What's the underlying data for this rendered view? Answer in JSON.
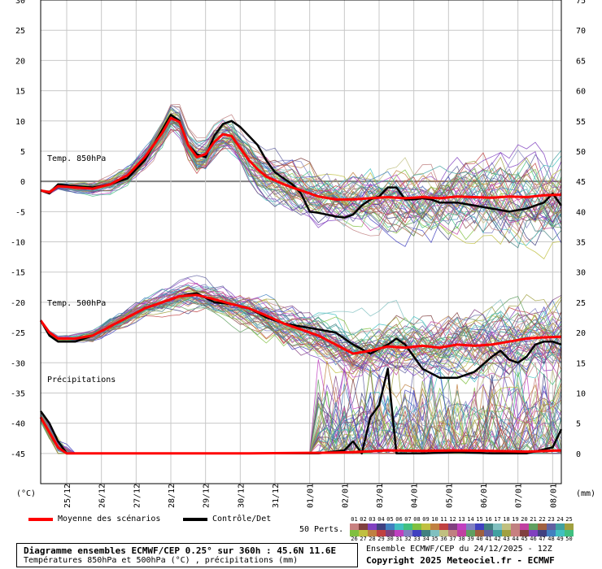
{
  "chart_data": {
    "type": "line",
    "left_axis": {
      "unit": "(°C)",
      "ticks": [
        30,
        25,
        20,
        15,
        10,
        5,
        0,
        -5,
        -10,
        -15,
        -20,
        -25,
        -30,
        -35,
        -40,
        -45
      ],
      "range": [
        -50,
        30
      ]
    },
    "right_axis": {
      "unit": "(mm)",
      "ticks": [
        75,
        70,
        65,
        60,
        55,
        50,
        45,
        40,
        35,
        30,
        25,
        20,
        15,
        10,
        5,
        0
      ],
      "range": [
        -5,
        75
      ]
    },
    "x_tick_labels": [
      "25/12",
      "26/12",
      "27/12",
      "28/12",
      "29/12",
      "30/12",
      "31/12",
      "01/01",
      "02/01",
      "03/01",
      "04/01",
      "05/01",
      "06/01",
      "07/01",
      "08/01"
    ],
    "x_range_days": [
      0,
      15
    ],
    "x_tick_positions_days": [
      0.75,
      1.75,
      2.75,
      3.75,
      4.75,
      5.75,
      6.75,
      7.75,
      8.75,
      9.75,
      10.75,
      11.75,
      12.75,
      13.75,
      14.75
    ],
    "annotations": [
      "Temp. 850hPa",
      "Temp. 500hPa",
      "Précipitations"
    ],
    "grid": true,
    "step_days": 0.25,
    "series": [
      {
        "name": "Moyenne des scénarios",
        "role": "t850_mean",
        "color": "#ff0000",
        "points": [
          [
            0,
            -1.5
          ],
          [
            0.25,
            -1.8
          ],
          [
            0.5,
            -0.8
          ],
          [
            1,
            -1
          ],
          [
            1.5,
            -1.2
          ],
          [
            2,
            -0.5
          ],
          [
            2.5,
            1
          ],
          [
            3,
            4
          ],
          [
            3.5,
            8
          ],
          [
            3.75,
            10.5
          ],
          [
            4,
            9.8
          ],
          [
            4.25,
            6
          ],
          [
            4.5,
            4
          ],
          [
            4.75,
            4.5
          ],
          [
            5,
            6.5
          ],
          [
            5.25,
            7.8
          ],
          [
            5.5,
            7.5
          ],
          [
            5.75,
            5.5
          ],
          [
            6,
            3.5
          ],
          [
            6.25,
            2
          ],
          [
            6.5,
            0.8
          ],
          [
            7,
            -0.5
          ],
          [
            7.5,
            -1.5
          ],
          [
            8,
            -2.5
          ],
          [
            8.5,
            -3
          ],
          [
            9,
            -3
          ],
          [
            9.5,
            -2.8
          ],
          [
            10,
            -2.6
          ],
          [
            10.5,
            -2.8
          ],
          [
            11,
            -2.6
          ],
          [
            11.5,
            -2.8
          ],
          [
            12,
            -2.5
          ],
          [
            12.5,
            -2.6
          ],
          [
            13,
            -2.7
          ],
          [
            13.5,
            -2.5
          ],
          [
            14,
            -2.6
          ],
          [
            14.5,
            -2.3
          ],
          [
            15,
            -2.2
          ]
        ]
      },
      {
        "name": "Contrôle/Det",
        "role": "t850_control",
        "color": "#000000",
        "points": [
          [
            0,
            -1.5
          ],
          [
            0.25,
            -2
          ],
          [
            0.5,
            -0.5
          ],
          [
            1,
            -0.8
          ],
          [
            1.5,
            -1
          ],
          [
            2,
            -0.5
          ],
          [
            2.5,
            0.5
          ],
          [
            3,
            3.5
          ],
          [
            3.5,
            8.5
          ],
          [
            3.75,
            11
          ],
          [
            4,
            10
          ],
          [
            4.25,
            6
          ],
          [
            4.5,
            4.5
          ],
          [
            4.75,
            4
          ],
          [
            5,
            7.5
          ],
          [
            5.25,
            9.5
          ],
          [
            5.5,
            10
          ],
          [
            5.75,
            9
          ],
          [
            6,
            7.5
          ],
          [
            6.25,
            6
          ],
          [
            6.5,
            3.5
          ],
          [
            6.75,
            1.5
          ],
          [
            7,
            0.5
          ],
          [
            7.25,
            -0.5
          ],
          [
            7.5,
            -2
          ],
          [
            7.75,
            -5
          ],
          [
            8,
            -5.2
          ],
          [
            8.25,
            -5.5
          ],
          [
            8.5,
            -5.8
          ],
          [
            8.75,
            -6
          ],
          [
            9,
            -5.5
          ],
          [
            9.25,
            -4
          ],
          [
            9.5,
            -3
          ],
          [
            9.75,
            -2.5
          ],
          [
            10,
            -1
          ],
          [
            10.25,
            -1
          ],
          [
            10.5,
            -3
          ],
          [
            10.75,
            -3
          ],
          [
            11,
            -2.8
          ],
          [
            11.25,
            -3
          ],
          [
            11.5,
            -3.5
          ],
          [
            12,
            -3.5
          ],
          [
            12.5,
            -4
          ],
          [
            13,
            -4.5
          ],
          [
            13.5,
            -5
          ],
          [
            14,
            -4.5
          ],
          [
            14.5,
            -3.5
          ],
          [
            14.75,
            -2
          ],
          [
            15,
            -4
          ]
        ]
      },
      {
        "name": "Moyenne des scénarios",
        "role": "t500_mean",
        "color": "#ff0000",
        "points": [
          [
            0,
            -23
          ],
          [
            0.25,
            -25
          ],
          [
            0.5,
            -26
          ],
          [
            1,
            -26
          ],
          [
            1.5,
            -25.5
          ],
          [
            2,
            -24
          ],
          [
            2.5,
            -22.5
          ],
          [
            3,
            -21
          ],
          [
            3.5,
            -20
          ],
          [
            4,
            -19
          ],
          [
            4.5,
            -18.8
          ],
          [
            5,
            -19.5
          ],
          [
            5.5,
            -20.3
          ],
          [
            6,
            -21
          ],
          [
            6.5,
            -22.2
          ],
          [
            7,
            -23.5
          ],
          [
            7.5,
            -24.5
          ],
          [
            8,
            -25.5
          ],
          [
            8.5,
            -27
          ],
          [
            9,
            -28.5
          ],
          [
            9.5,
            -28
          ],
          [
            10,
            -27.3
          ],
          [
            10.5,
            -27.5
          ],
          [
            11,
            -27.2
          ],
          [
            11.5,
            -27.5
          ],
          [
            12,
            -27
          ],
          [
            12.5,
            -27.2
          ],
          [
            13,
            -27
          ],
          [
            13.5,
            -26.5
          ],
          [
            14,
            -26
          ],
          [
            14.5,
            -25.8
          ],
          [
            15,
            -25.7
          ]
        ]
      },
      {
        "name": "Contrôle/Det",
        "role": "t500_control",
        "color": "#000000",
        "points": [
          [
            0,
            -23
          ],
          [
            0.25,
            -25.5
          ],
          [
            0.5,
            -26.5
          ],
          [
            1,
            -26.5
          ],
          [
            1.5,
            -25.5
          ],
          [
            2,
            -24
          ],
          [
            2.5,
            -22.5
          ],
          [
            3,
            -21
          ],
          [
            3.5,
            -20
          ],
          [
            4,
            -19
          ],
          [
            4.5,
            -18.5
          ],
          [
            5,
            -20
          ],
          [
            5.5,
            -20.3
          ],
          [
            6,
            -21
          ],
          [
            6.5,
            -22.5
          ],
          [
            7,
            -23.5
          ],
          [
            7.5,
            -24
          ],
          [
            8,
            -24.5
          ],
          [
            8.5,
            -25
          ],
          [
            8.75,
            -26
          ],
          [
            9,
            -27
          ],
          [
            9.5,
            -28.5
          ],
          [
            10,
            -27
          ],
          [
            10.25,
            -26
          ],
          [
            10.5,
            -27
          ],
          [
            10.75,
            -29
          ],
          [
            11,
            -31
          ],
          [
            11.5,
            -32.5
          ],
          [
            12,
            -32.5
          ],
          [
            12.5,
            -31.5
          ],
          [
            13,
            -29
          ],
          [
            13.25,
            -28
          ],
          [
            13.5,
            -29.5
          ],
          [
            13.75,
            -30
          ],
          [
            14,
            -29
          ],
          [
            14.25,
            -27
          ],
          [
            14.5,
            -26.5
          ],
          [
            14.75,
            -26.5
          ],
          [
            15,
            -27
          ]
        ]
      },
      {
        "name": "Moyenne des scénarios",
        "role": "precip_mean",
        "color": "#ff0000",
        "points": [
          [
            0,
            -39
          ],
          [
            0.25,
            -41.5
          ],
          [
            0.5,
            -44
          ],
          [
            0.75,
            -45
          ],
          [
            1.5,
            -45
          ],
          [
            3,
            -45
          ],
          [
            6,
            -45
          ],
          [
            8,
            -44.9
          ],
          [
            9,
            -44.8
          ],
          [
            10,
            -44.5
          ],
          [
            11,
            -44.6
          ],
          [
            12,
            -44.5
          ],
          [
            13,
            -44.6
          ],
          [
            14,
            -44.7
          ],
          [
            15,
            -44.5
          ]
        ]
      },
      {
        "name": "Contrôle/Det",
        "role": "precip_control",
        "color": "#000000",
        "points": [
          [
            0,
            -38
          ],
          [
            0.25,
            -40
          ],
          [
            0.5,
            -43
          ],
          [
            0.75,
            -45
          ],
          [
            1.5,
            -45
          ],
          [
            3,
            -45
          ],
          [
            6,
            -45
          ],
          [
            8,
            -45
          ],
          [
            8.75,
            -44.5
          ],
          [
            9,
            -43
          ],
          [
            9.25,
            -45
          ],
          [
            9.5,
            -39
          ],
          [
            9.75,
            -37
          ],
          [
            10,
            -31
          ],
          [
            10.25,
            -45
          ],
          [
            10.5,
            -45
          ],
          [
            11,
            -45
          ],
          [
            12,
            -44.8
          ],
          [
            13,
            -45
          ],
          [
            14,
            -45
          ],
          [
            14.75,
            -44
          ],
          [
            15,
            -41
          ]
        ]
      }
    ]
  },
  "legend": {
    "mean_label": "Moyenne des scénarios",
    "mean_color": "#ff0000",
    "control_label": "Contrôle/Det",
    "control_color": "#000000",
    "perts_label": "50 Perts.",
    "perts_row1": [
      "01",
      "02",
      "03",
      "04",
      "05",
      "06",
      "07",
      "08",
      "09",
      "10",
      "11",
      "12",
      "13",
      "14",
      "15",
      "16",
      "17",
      "18",
      "19",
      "20",
      "21",
      "22",
      "23",
      "24",
      "25"
    ],
    "perts_row2": [
      "26",
      "27",
      "28",
      "29",
      "30",
      "31",
      "32",
      "33",
      "34",
      "35",
      "36",
      "37",
      "38",
      "39",
      "40",
      "41",
      "42",
      "43",
      "44",
      "45",
      "46",
      "47",
      "48",
      "49",
      "50"
    ],
    "perts_colors": [
      "#c88080",
      "#804040",
      "#8040c0",
      "#404080",
      "#4080c0",
      "#40c0c0",
      "#40c080",
      "#80c040",
      "#c0c040",
      "#c08040",
      "#c04040",
      "#804080",
      "#c040c0",
      "#8080c0",
      "#4040c0",
      "#408080",
      "#80c0c0",
      "#c0c080",
      "#c08080",
      "#c040a0",
      "#60a060",
      "#a06040",
      "#6060a0",
      "#40a0a0",
      "#a0a040"
    ]
  },
  "title": {
    "line1": "Diagramme ensembles ECMWF/CEP 0.25° sur 360h : 45.6N 11.6E",
    "line2": "Températures 850hPa et 500hPa (°C) , précipitations (mm)"
  },
  "credits": {
    "run": "Ensemble ECMWF/CEP du 24/12/2025 - 12Z",
    "copyright": "Copyright 2025 Meteociel.fr - ECMWF"
  }
}
